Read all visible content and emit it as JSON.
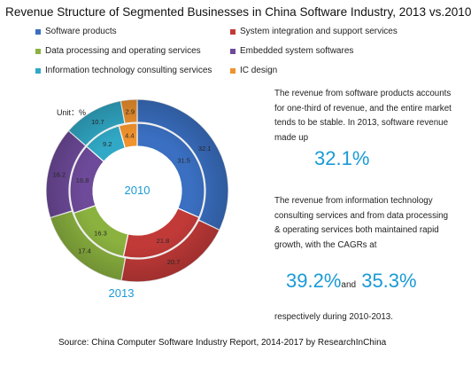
{
  "title": "Revenue Structure of Segmented Businesses in China Software Industry, 2013 vs.2010",
  "unit_label": "Unit：%",
  "legend": [
    {
      "label": "Software products",
      "color": "#3a6fc1"
    },
    {
      "label": "System integration and support services",
      "color": "#c23a38"
    },
    {
      "label": "Data processing and operating services",
      "color": "#8bb23f"
    },
    {
      "label": "Embedded system softwares",
      "color": "#6e4a9a"
    },
    {
      "label": "Information technology consulting services",
      "color": "#31a9c6"
    },
    {
      "label": "IC design",
      "color": "#f0922e"
    }
  ],
  "chart_data": {
    "type": "pie",
    "subtype": "double-donut",
    "categories": [
      "Software products",
      "System integration and support services",
      "Data processing and operating services",
      "Embedded system softwares",
      "Information technology consulting services",
      "IC design"
    ],
    "colors": [
      "#3a6fc1",
      "#c23a38",
      "#8bb23f",
      "#6e4a9a",
      "#31a9c6",
      "#f0922e"
    ],
    "series": [
      {
        "name": "2010",
        "ring": "inner",
        "values": [
          31.5,
          21.8,
          16.3,
          16.8,
          9.2,
          4.4
        ]
      },
      {
        "name": "2013",
        "ring": "outer",
        "values": [
          32.1,
          20.7,
          17.4,
          16.2,
          10.7,
          2.9
        ]
      }
    ],
    "center_label": "2010",
    "below_label": "2013"
  },
  "text": {
    "p1": "The revenue from software products accounts for one-third of revenue, and the entire market tends to be stable. In 2013, software revenue made up",
    "big1": "32.1%",
    "p2": "The revenue from information technology consulting services and from data processing & operating services both maintained rapid growth, with the CAGRs at",
    "big2a": "39.2%",
    "and": "and",
    "big2b": "35.3%",
    "p3": "respectively during 2010-2013."
  },
  "source": "Source: China Computer Software Industry Report, 2014-2017 by ResearchInChina"
}
